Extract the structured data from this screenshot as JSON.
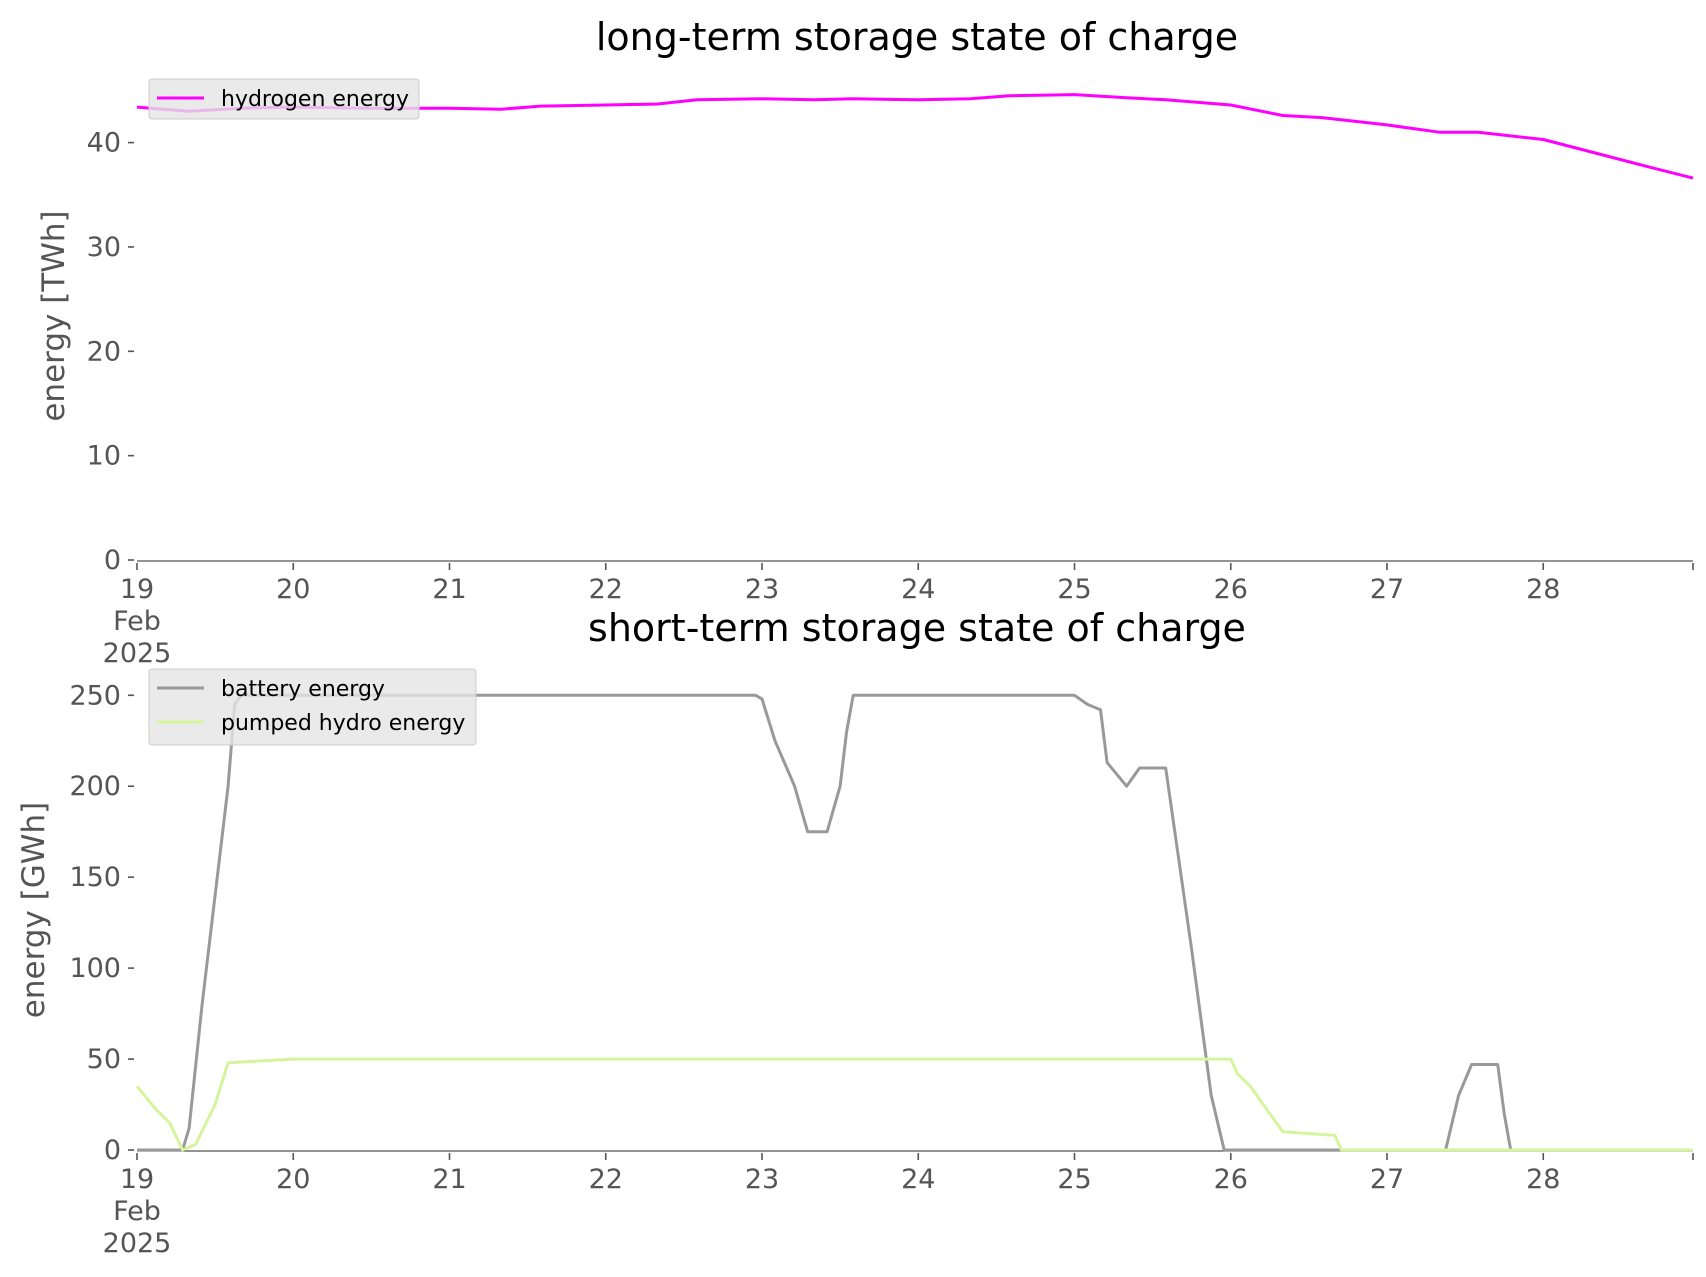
{
  "chart_data": [
    {
      "type": "line",
      "title": "long-term storage state of charge",
      "ylabel": "energy [TWh]",
      "xlabel": "",
      "xlim": [
        "2025-02-19 00:00",
        "2025-02-28 23:00"
      ],
      "ylim": [
        0,
        46
      ],
      "yticks": [
        0,
        10,
        20,
        30,
        40
      ],
      "xticks": [
        {
          "date": "2025-02-19",
          "label": [
            "19",
            "Feb",
            "2025"
          ]
        },
        {
          "date": "2025-02-20",
          "label": [
            "20"
          ]
        },
        {
          "date": "2025-02-21",
          "label": [
            "21"
          ]
        },
        {
          "date": "2025-02-22",
          "label": [
            "22"
          ]
        },
        {
          "date": "2025-02-23",
          "label": [
            "23"
          ]
        },
        {
          "date": "2025-02-24",
          "label": [
            "24"
          ]
        },
        {
          "date": "2025-02-25",
          "label": [
            "25"
          ]
        },
        {
          "date": "2025-02-26",
          "label": [
            "26"
          ]
        },
        {
          "date": "2025-02-27",
          "label": [
            "27"
          ]
        },
        {
          "date": "2025-02-28",
          "label": [
            "28"
          ]
        }
      ],
      "grid": false,
      "legend": "top-left",
      "series": [
        {
          "name": "hydrogen energy",
          "color": "#ff00ff",
          "points": [
            [
              "2025-02-19 00:00",
              43.4
            ],
            [
              "2025-02-19 08:00",
              43.0
            ],
            [
              "2025-02-19 16:00",
              43.3
            ],
            [
              "2025-02-20 00:00",
              43.4
            ],
            [
              "2025-02-20 12:00",
              43.3
            ],
            [
              "2025-02-21 00:00",
              43.3
            ],
            [
              "2025-02-21 08:00",
              43.2
            ],
            [
              "2025-02-21 14:00",
              43.5
            ],
            [
              "2025-02-22 00:00",
              43.6
            ],
            [
              "2025-02-22 08:00",
              43.7
            ],
            [
              "2025-02-22 14:00",
              44.1
            ],
            [
              "2025-02-23 00:00",
              44.2
            ],
            [
              "2025-02-23 08:00",
              44.1
            ],
            [
              "2025-02-23 14:00",
              44.2
            ],
            [
              "2025-02-24 00:00",
              44.1
            ],
            [
              "2025-02-24 08:00",
              44.2
            ],
            [
              "2025-02-24 14:00",
              44.5
            ],
            [
              "2025-02-25 00:00",
              44.6
            ],
            [
              "2025-02-25 08:00",
              44.3
            ],
            [
              "2025-02-25 14:00",
              44.1
            ],
            [
              "2025-02-26 00:00",
              43.6
            ],
            [
              "2025-02-26 08:00",
              42.6
            ],
            [
              "2025-02-26 14:00",
              42.4
            ],
            [
              "2025-02-27 00:00",
              41.7
            ],
            [
              "2025-02-27 08:00",
              41.0
            ],
            [
              "2025-02-27 14:00",
              41.0
            ],
            [
              "2025-02-28 00:00",
              40.3
            ],
            [
              "2025-02-28 08:00",
              39.0
            ],
            [
              "2025-02-28 16:00",
              37.7
            ],
            [
              "2025-02-28 23:00",
              36.6
            ]
          ]
        }
      ]
    },
    {
      "type": "line",
      "title": "short-term storage state of charge",
      "ylabel": "energy [GWh]",
      "xlabel": "",
      "xlim": [
        "2025-02-19 00:00",
        "2025-02-28 23:00"
      ],
      "ylim": [
        0,
        265
      ],
      "yticks": [
        0,
        50,
        100,
        150,
        200,
        250
      ],
      "xticks": [
        {
          "date": "2025-02-19",
          "label": [
            "19",
            "Feb",
            "2025"
          ]
        },
        {
          "date": "2025-02-20",
          "label": [
            "20"
          ]
        },
        {
          "date": "2025-02-21",
          "label": [
            "21"
          ]
        },
        {
          "date": "2025-02-22",
          "label": [
            "22"
          ]
        },
        {
          "date": "2025-02-23",
          "label": [
            "23"
          ]
        },
        {
          "date": "2025-02-24",
          "label": [
            "24"
          ]
        },
        {
          "date": "2025-02-25",
          "label": [
            "25"
          ]
        },
        {
          "date": "2025-02-26",
          "label": [
            "26"
          ]
        },
        {
          "date": "2025-02-27",
          "label": [
            "27"
          ]
        },
        {
          "date": "2025-02-28",
          "label": [
            "28"
          ]
        }
      ],
      "grid": false,
      "legend": "top-left",
      "series": [
        {
          "name": "battery energy",
          "color": "#999999",
          "points": [
            [
              "2025-02-19 00:00",
              0
            ],
            [
              "2025-02-19 07:00",
              0
            ],
            [
              "2025-02-19 08:00",
              12
            ],
            [
              "2025-02-19 10:00",
              80
            ],
            [
              "2025-02-19 14:00",
              200
            ],
            [
              "2025-02-19 15:00",
              245
            ],
            [
              "2025-02-19 16:00",
              250
            ],
            [
              "2025-02-22 23:00",
              250
            ],
            [
              "2025-02-23 00:00",
              248
            ],
            [
              "2025-02-23 02:00",
              225
            ],
            [
              "2025-02-23 05:00",
              200
            ],
            [
              "2025-02-23 07:00",
              175
            ],
            [
              "2025-02-23 10:00",
              175
            ],
            [
              "2025-02-23 12:00",
              200
            ],
            [
              "2025-02-23 13:00",
              230
            ],
            [
              "2025-02-23 14:00",
              250
            ],
            [
              "2025-02-25 00:00",
              250
            ],
            [
              "2025-02-25 02:00",
              245
            ],
            [
              "2025-02-25 04:00",
              242
            ],
            [
              "2025-02-25 05:00",
              213
            ],
            [
              "2025-02-25 08:00",
              200
            ],
            [
              "2025-02-25 10:00",
              210
            ],
            [
              "2025-02-25 14:00",
              210
            ],
            [
              "2025-02-25 18:00",
              110
            ],
            [
              "2025-02-25 21:00",
              30
            ],
            [
              "2025-02-25 23:00",
              0
            ],
            [
              "2025-02-27 09:00",
              0
            ],
            [
              "2025-02-27 11:00",
              30
            ],
            [
              "2025-02-27 13:00",
              47
            ],
            [
              "2025-02-27 17:00",
              47
            ],
            [
              "2025-02-27 18:00",
              20
            ],
            [
              "2025-02-27 19:00",
              0
            ],
            [
              "2025-02-28 23:00",
              0
            ]
          ]
        },
        {
          "name": "pumped hydro energy",
          "color": "#d4f59c",
          "points": [
            [
              "2025-02-19 00:00",
              35
            ],
            [
              "2025-02-19 03:00",
              22
            ],
            [
              "2025-02-19 05:00",
              15
            ],
            [
              "2025-02-19 07:00",
              0
            ],
            [
              "2025-02-19 09:00",
              3
            ],
            [
              "2025-02-19 12:00",
              25
            ],
            [
              "2025-02-19 14:00",
              48
            ],
            [
              "2025-02-20 00:00",
              50
            ],
            [
              "2025-02-26 00:00",
              50
            ],
            [
              "2025-02-26 01:00",
              42
            ],
            [
              "2025-02-26 03:00",
              35
            ],
            [
              "2025-02-26 05:00",
              25
            ],
            [
              "2025-02-26 06:00",
              20
            ],
            [
              "2025-02-26 08:00",
              10
            ],
            [
              "2025-02-26 16:00",
              8
            ],
            [
              "2025-02-26 17:00",
              0
            ],
            [
              "2025-02-28 23:00",
              0
            ]
          ]
        }
      ]
    }
  ]
}
